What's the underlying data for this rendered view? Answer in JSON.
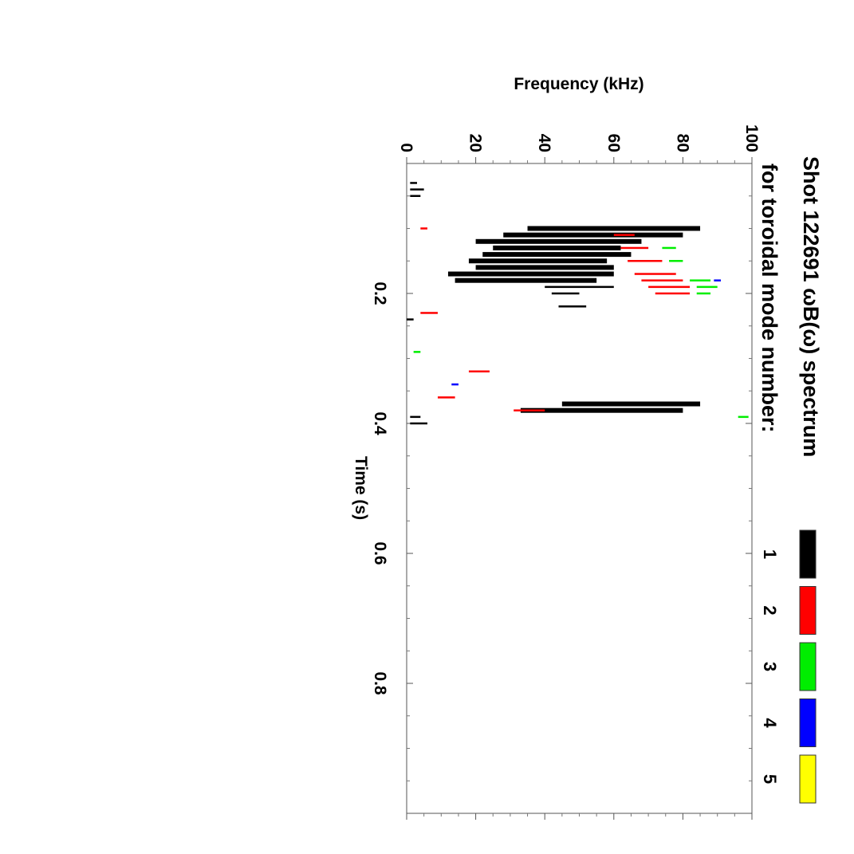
{
  "chart_data": {
    "type": "spectrogram",
    "orientation": "rotated-90-clockwise",
    "title": "Shot 122691 ωB(ω) spectrum",
    "subtitle": "for toroidal mode number:",
    "xlabel": "Time (s)",
    "ylabel": "Frequency (kHz)",
    "xlim": [
      0.0,
      1.0
    ],
    "ylim": [
      0,
      100
    ],
    "x_ticks": [
      0.2,
      0.4,
      0.6,
      0.8
    ],
    "x_tick_labels": [
      "0.2",
      "0.4",
      "0.6",
      "0.8"
    ],
    "y_ticks": [
      0,
      20,
      40,
      60,
      80,
      100
    ],
    "y_tick_labels": [
      "0",
      "20",
      "40",
      "60",
      "80",
      "100"
    ],
    "legend": [
      {
        "label": "1",
        "color": "#000000"
      },
      {
        "label": "2",
        "color": "#ff0000"
      },
      {
        "label": "3",
        "color": "#00ee00"
      },
      {
        "label": "4",
        "color": "#0000ff"
      },
      {
        "label": "5",
        "color": "#ffff00"
      }
    ],
    "series": [
      {
        "name": "n=1",
        "color": "#000000",
        "segments": [
          {
            "t": 0.03,
            "f0": 1,
            "f1": 3
          },
          {
            "t": 0.04,
            "f0": 1,
            "f1": 5
          },
          {
            "t": 0.05,
            "f0": 1,
            "f1": 4
          },
          {
            "t": 0.1,
            "f0": 35,
            "f1": 85
          },
          {
            "t": 0.11,
            "f0": 28,
            "f1": 80
          },
          {
            "t": 0.12,
            "f0": 20,
            "f1": 68
          },
          {
            "t": 0.13,
            "f0": 25,
            "f1": 62
          },
          {
            "t": 0.14,
            "f0": 22,
            "f1": 65
          },
          {
            "t": 0.15,
            "f0": 18,
            "f1": 58
          },
          {
            "t": 0.16,
            "f0": 20,
            "f1": 60
          },
          {
            "t": 0.17,
            "f0": 12,
            "f1": 60
          },
          {
            "t": 0.18,
            "f0": 14,
            "f1": 55
          },
          {
            "t": 0.19,
            "f0": 40,
            "f1": 60
          },
          {
            "t": 0.2,
            "f0": 42,
            "f1": 50
          },
          {
            "t": 0.22,
            "f0": 44,
            "f1": 52
          },
          {
            "t": 0.24,
            "f0": 0,
            "f1": 2
          },
          {
            "t": 0.37,
            "f0": 45,
            "f1": 85
          },
          {
            "t": 0.38,
            "f0": 33,
            "f1": 80
          },
          {
            "t": 0.39,
            "f0": 1,
            "f1": 4
          },
          {
            "t": 0.4,
            "f0": 1,
            "f1": 6
          }
        ]
      },
      {
        "name": "n=2",
        "color": "#ff0000",
        "segments": [
          {
            "t": 0.1,
            "f0": 4,
            "f1": 6
          },
          {
            "t": 0.11,
            "f0": 60,
            "f1": 66
          },
          {
            "t": 0.13,
            "f0": 62,
            "f1": 70
          },
          {
            "t": 0.15,
            "f0": 64,
            "f1": 74
          },
          {
            "t": 0.17,
            "f0": 66,
            "f1": 78
          },
          {
            "t": 0.18,
            "f0": 68,
            "f1": 80
          },
          {
            "t": 0.19,
            "f0": 70,
            "f1": 82
          },
          {
            "t": 0.2,
            "f0": 72,
            "f1": 82
          },
          {
            "t": 0.23,
            "f0": 4,
            "f1": 9
          },
          {
            "t": 0.32,
            "f0": 18,
            "f1": 24
          },
          {
            "t": 0.36,
            "f0": 9,
            "f1": 14
          },
          {
            "t": 0.38,
            "f0": 31,
            "f1": 40
          }
        ]
      },
      {
        "name": "n=3",
        "color": "#00ee00",
        "segments": [
          {
            "t": 0.13,
            "f0": 74,
            "f1": 78
          },
          {
            "t": 0.15,
            "f0": 76,
            "f1": 80
          },
          {
            "t": 0.18,
            "f0": 82,
            "f1": 88
          },
          {
            "t": 0.19,
            "f0": 84,
            "f1": 90
          },
          {
            "t": 0.2,
            "f0": 84,
            "f1": 88
          },
          {
            "t": 0.29,
            "f0": 2,
            "f1": 4
          },
          {
            "t": 0.39,
            "f0": 96,
            "f1": 99
          }
        ]
      },
      {
        "name": "n=4",
        "color": "#0000ff",
        "segments": [
          {
            "t": 0.18,
            "f0": 89,
            "f1": 91
          },
          {
            "t": 0.34,
            "f0": 13,
            "f1": 15
          }
        ]
      },
      {
        "name": "n=5",
        "color": "#ffff00",
        "segments": []
      }
    ]
  }
}
